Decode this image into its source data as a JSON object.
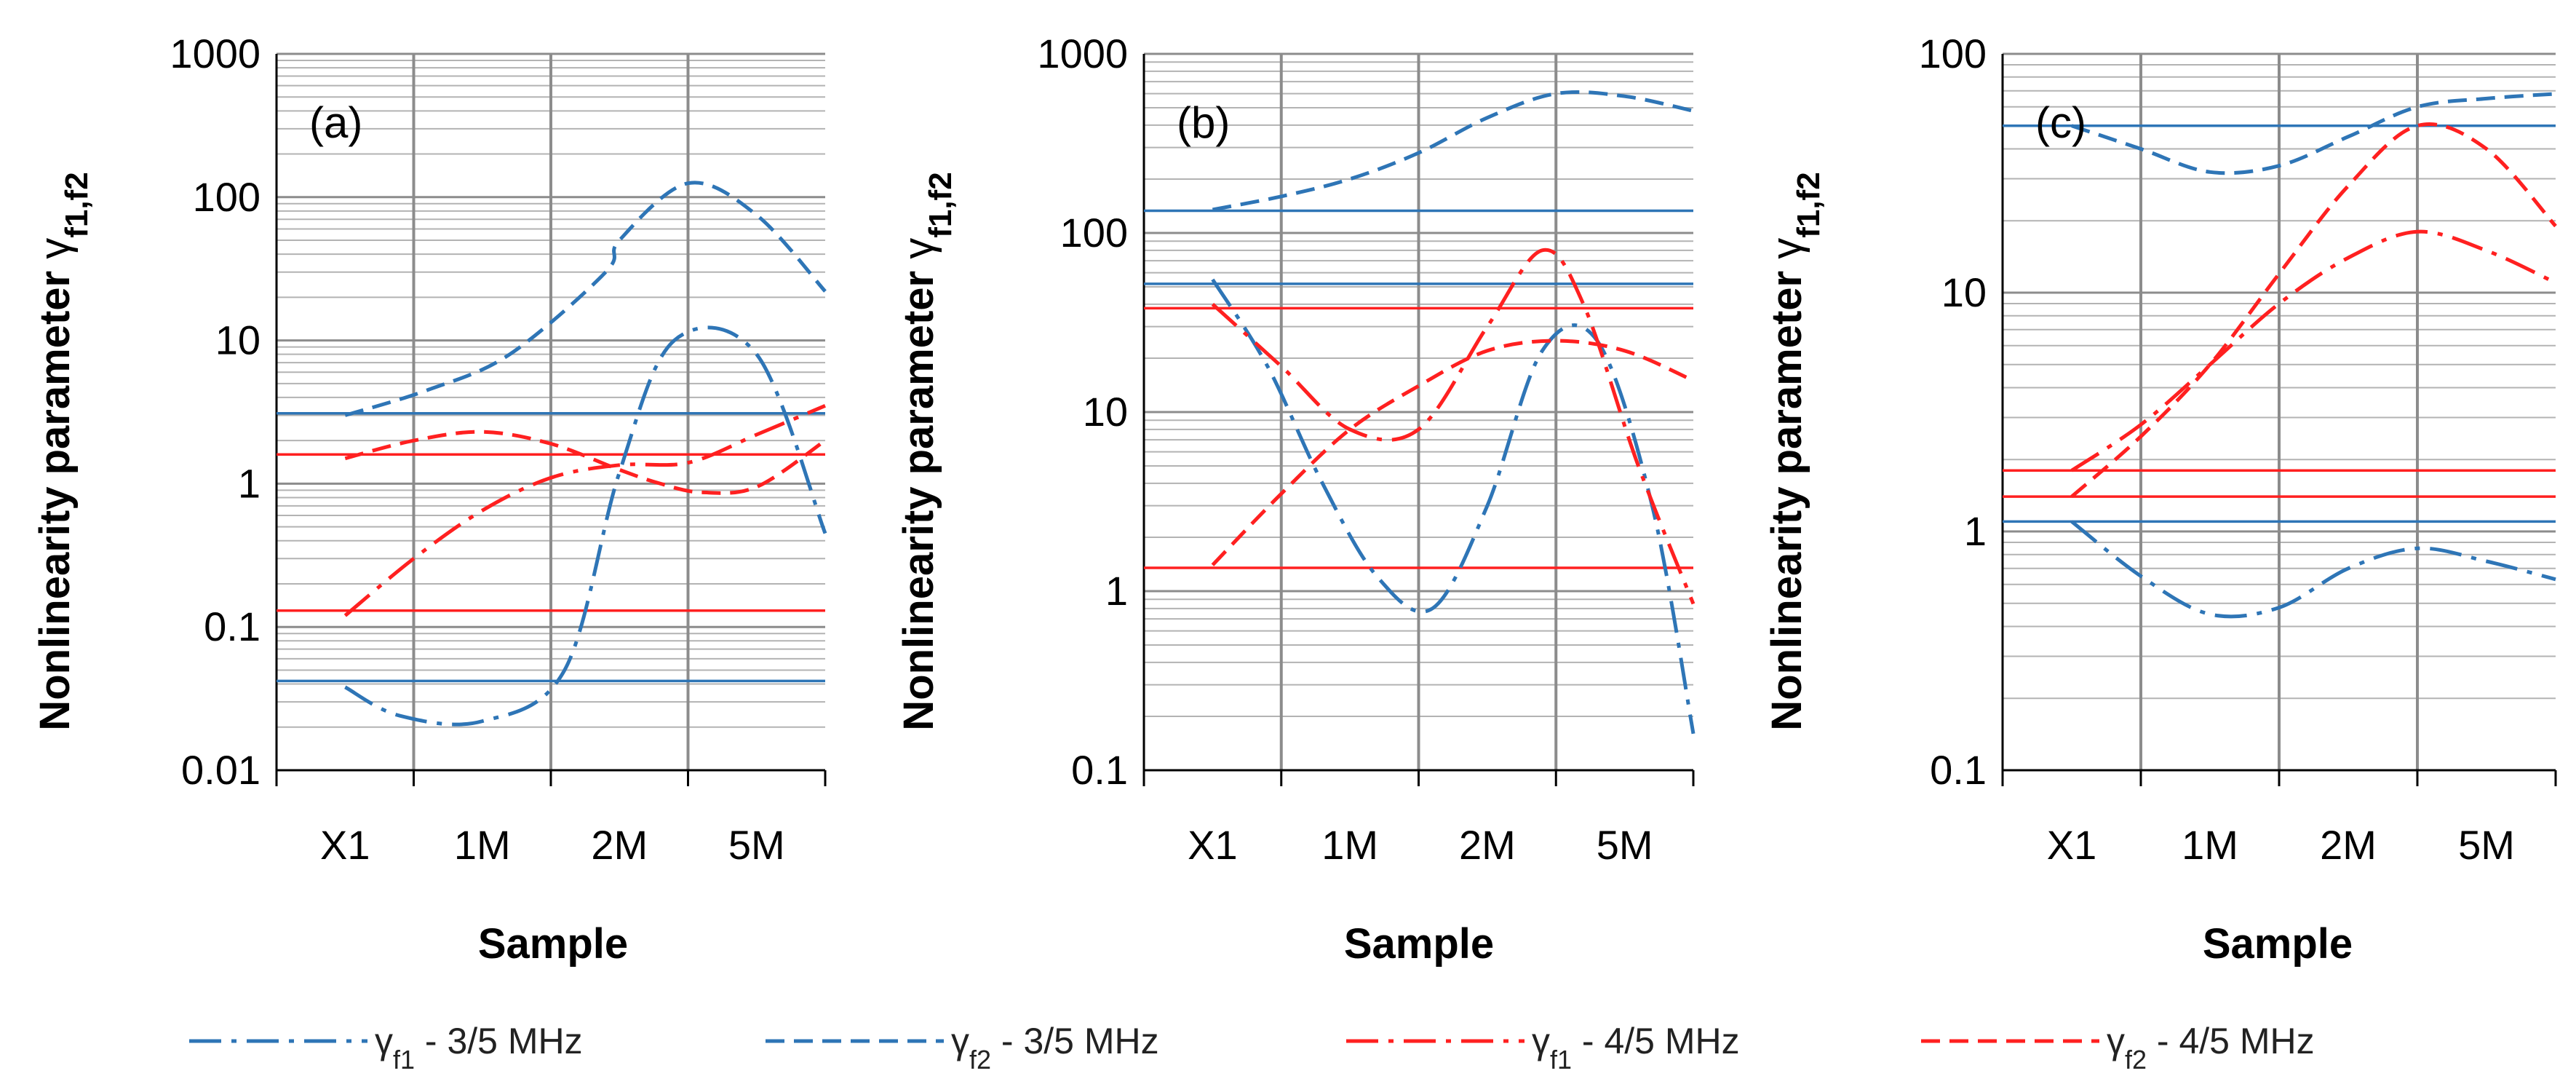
{
  "figure": {
    "ylabel": "Nonlinearity parameter γf1,f2",
    "xlabel": "Sample",
    "colors": {
      "blue": "#2E75B6",
      "red": "#FF2020",
      "grid_minor": "#b3b3b3",
      "grid_major": "#8c8c8c"
    }
  },
  "legend": [
    {
      "symbol": "γ",
      "sub": "f1",
      "rest": " - 3/5 MHz",
      "color": "#2E75B6",
      "style": "dashdot"
    },
    {
      "symbol": "γ",
      "sub": "f2",
      "rest": " - 3/5 MHz",
      "color": "#2E75B6",
      "style": "dash"
    },
    {
      "symbol": "γ",
      "sub": "f1",
      "rest": " - 4/5 MHz",
      "color": "#FF2020",
      "style": "dashdot"
    },
    {
      "symbol": "γ",
      "sub": "f2",
      "rest": " - 4/5 MHz",
      "color": "#FF2020",
      "style": "dash"
    }
  ],
  "chart_data": [
    {
      "type": "line",
      "panel_label": "(a)",
      "yscale": "log",
      "ylim": [
        0.01,
        1000
      ],
      "yticks": [
        "0.01",
        "0.1",
        "1",
        "10",
        "100",
        "1000"
      ],
      "categories": [
        "X1",
        "1M",
        "2M",
        "5M"
      ],
      "series": [
        {
          "name": "γf1 - 3/5 MHz",
          "color": "#2E75B6",
          "style": "dashdot",
          "x": [
            1,
            1.4,
            2,
            2.6,
            3,
            3.4,
            4,
            4.5
          ],
          "values": [
            0.038,
            0.024,
            0.022,
            0.05,
            1.2,
            10,
            8,
            0.45
          ]
        },
        {
          "name": "γf2 - 3/5 MHz",
          "color": "#2E75B6",
          "style": "dash",
          "x": [
            1,
            1.6,
            2.2,
            2.9,
            3,
            3.5,
            4,
            4.5
          ],
          "values": [
            3,
            4.5,
            8,
            30,
            50,
            125,
            75,
            22
          ]
        },
        {
          "name": "γf1 - 4/5 MHz",
          "color": "#FF2020",
          "style": "dashdot",
          "x": [
            1,
            1.5,
            2,
            2.5,
            3,
            3.5,
            4,
            4.5
          ],
          "values": [
            0.12,
            0.3,
            0.65,
            1.1,
            1.35,
            1.4,
            2.2,
            3.5
          ]
        },
        {
          "name": "γf2 - 4/5 MHz",
          "color": "#FF2020",
          "style": "dash",
          "x": [
            1,
            1.5,
            2,
            2.5,
            3,
            3.3,
            3.6,
            4,
            4.5
          ],
          "values": [
            1.5,
            2,
            2.3,
            1.9,
            1.25,
            1,
            0.87,
            0.95,
            2
          ]
        }
      ],
      "hlines": [
        {
          "value": 3.1,
          "color": "#2E75B6"
        },
        {
          "value": 0.042,
          "color": "#2E75B6"
        },
        {
          "value": 1.6,
          "color": "#FF2020"
        },
        {
          "value": 0.13,
          "color": "#FF2020"
        }
      ]
    },
    {
      "type": "line",
      "panel_label": "(b)",
      "yscale": "log",
      "ylim": [
        0.1,
        1000
      ],
      "yticks": [
        "0.1",
        "1",
        "10",
        "100",
        "1000"
      ],
      "categories": [
        "X1",
        "1M",
        "2M",
        "5M"
      ],
      "series": [
        {
          "name": "γf1 - 3/5 MHz",
          "color": "#2E75B6",
          "style": "dashdot",
          "x": [
            1,
            1.4,
            1.8,
            2.2,
            2.6,
            3.0,
            3.4,
            3.8,
            4.2,
            4.5
          ],
          "values": [
            55,
            18,
            4,
            1.2,
            0.8,
            3,
            22,
            25,
            3,
            0.16
          ]
        },
        {
          "name": "γf2 - 3/5 MHz",
          "color": "#2E75B6",
          "style": "dash",
          "x": [
            1,
            1.5,
            2,
            2.5,
            3,
            3.5,
            4,
            4.5
          ],
          "values": [
            135,
            160,
            200,
            280,
            440,
            600,
            580,
            480
          ]
        },
        {
          "name": "γf1 - 4/5 MHz",
          "color": "#FF2020",
          "style": "dashdot",
          "x": [
            1,
            1.5,
            2,
            2.5,
            3.0,
            3.4,
            3.7,
            4.1,
            4.5
          ],
          "values": [
            40,
            18,
            8,
            8,
            30,
            80,
            40,
            5,
            0.85
          ]
        },
        {
          "name": "γf2 - 4/5 MHz",
          "color": "#FF2020",
          "style": "dash",
          "x": [
            1,
            1.5,
            2,
            2.5,
            3,
            3.5,
            4,
            4.5
          ],
          "values": [
            1.4,
            3.5,
            8,
            14,
            22,
            25,
            22,
            15
          ]
        }
      ],
      "hlines": [
        {
          "value": 133,
          "color": "#2E75B6"
        },
        {
          "value": 52,
          "color": "#2E75B6"
        },
        {
          "value": 38,
          "color": "#FF2020"
        },
        {
          "value": 1.35,
          "color": "#FF2020"
        }
      ]
    },
    {
      "type": "line",
      "panel_label": "(c)",
      "yscale": "log",
      "ylim": [
        0.1,
        100
      ],
      "yticks": [
        "0.1",
        "1",
        "10",
        "100"
      ],
      "categories": [
        "X1",
        "1M",
        "2M",
        "5M"
      ],
      "series": [
        {
          "name": "γf1 - 3/5 MHz",
          "color": "#2E75B6",
          "style": "dashdot",
          "x": [
            1,
            1.5,
            2,
            2.5,
            3,
            3.5,
            4,
            4.5
          ],
          "values": [
            1.1,
            0.65,
            0.45,
            0.48,
            0.7,
            0.85,
            0.75,
            0.63
          ]
        },
        {
          "name": "γf2 - 3/5 MHz",
          "color": "#2E75B6",
          "style": "dash",
          "x": [
            1,
            1.5,
            2,
            2.5,
            3,
            3.5,
            4,
            4.5
          ],
          "values": [
            50,
            40,
            32,
            34,
            45,
            60,
            65,
            68
          ]
        },
        {
          "name": "γf1 - 4/5 MHz",
          "color": "#FF2020",
          "style": "dashdot",
          "x": [
            1,
            1.5,
            2,
            2.5,
            3,
            3.5,
            4,
            4.5
          ],
          "values": [
            1.8,
            2.8,
            5,
            9,
            14,
            18,
            15,
            11
          ]
        },
        {
          "name": "γf2 - 4/5 MHz",
          "color": "#FF2020",
          "style": "dash",
          "x": [
            1,
            1.5,
            2,
            2.5,
            3,
            3.5,
            4,
            4.5
          ],
          "values": [
            1.4,
            2.5,
            5,
            12,
            28,
            50,
            40,
            19
          ]
        }
      ],
      "hlines": [
        {
          "value": 50,
          "color": "#2E75B6"
        },
        {
          "value": 1.1,
          "color": "#2E75B6"
        },
        {
          "value": 1.8,
          "color": "#FF2020"
        },
        {
          "value": 1.4,
          "color": "#FF2020"
        }
      ]
    }
  ]
}
